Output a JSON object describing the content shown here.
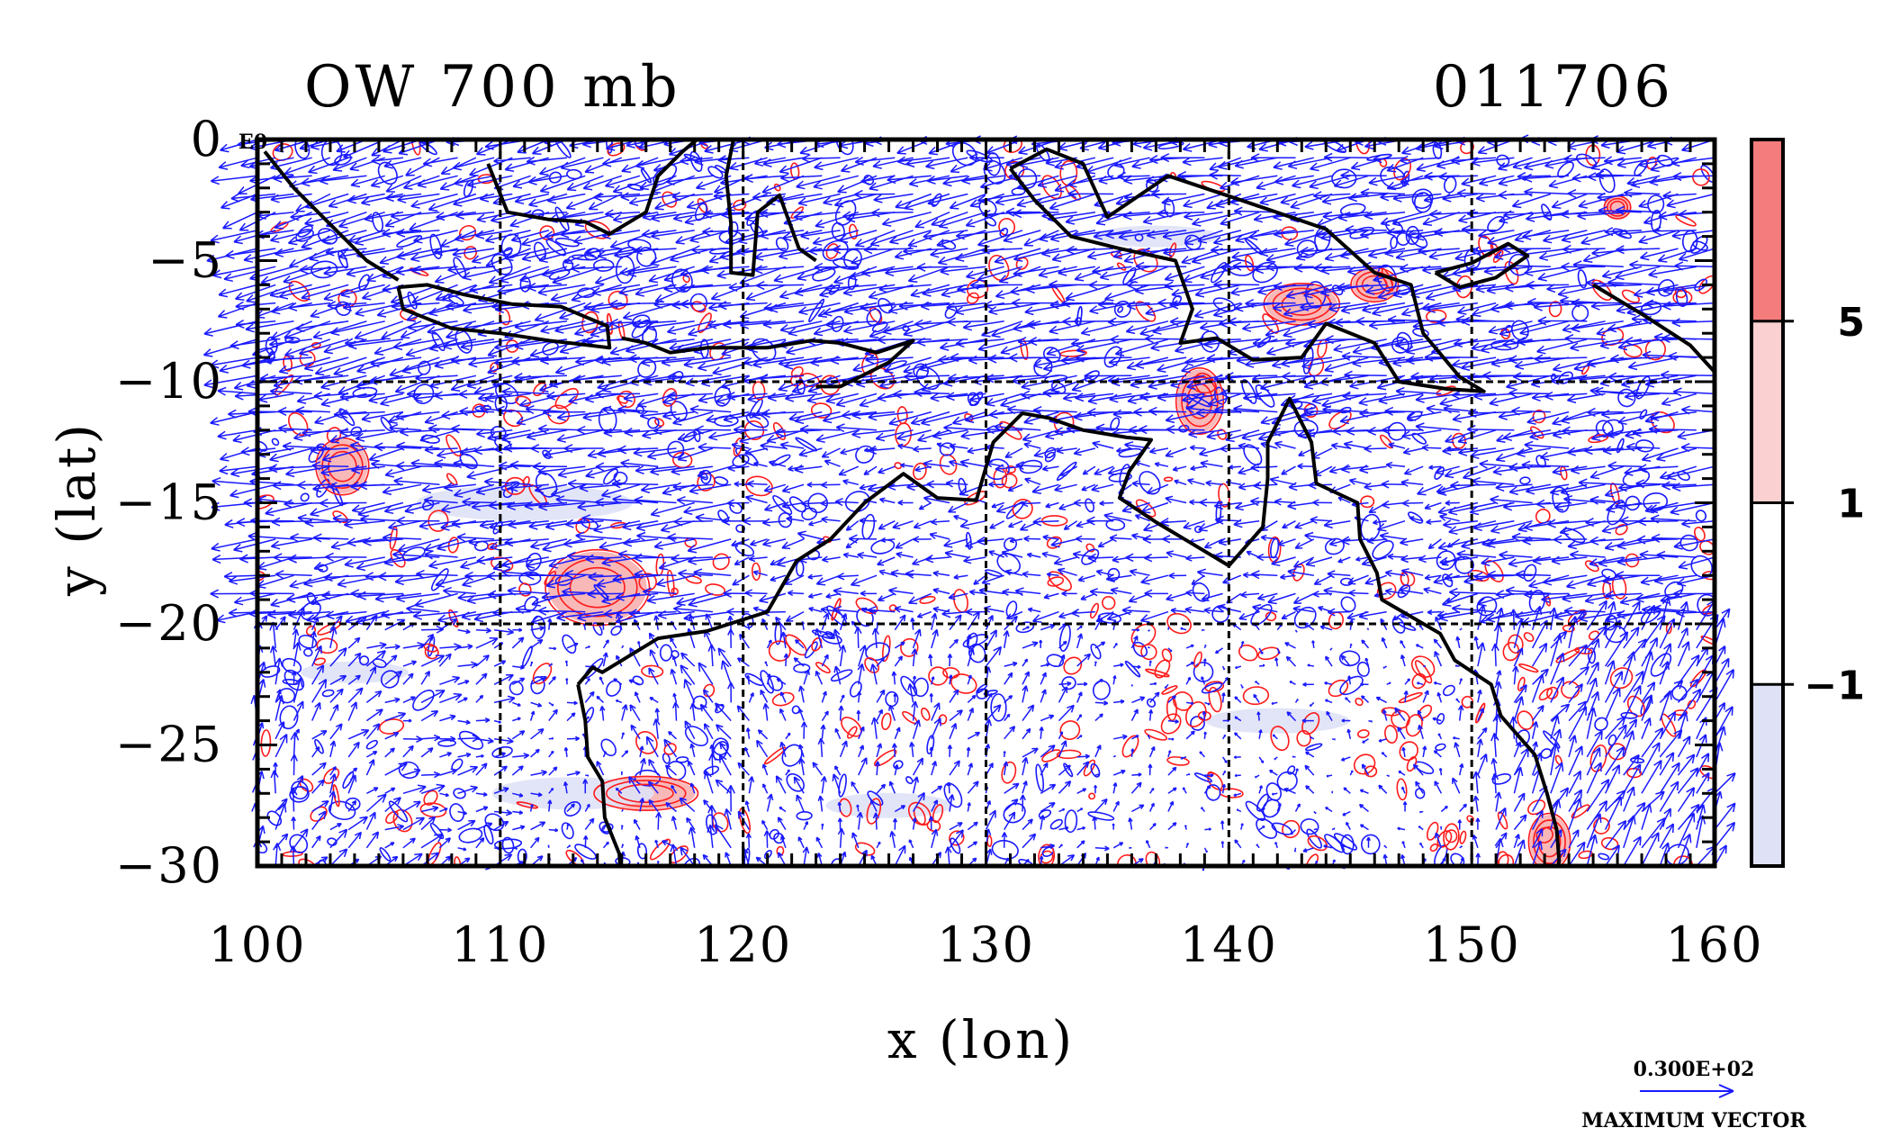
{
  "chart_data": {
    "type": "contour",
    "title": "OW 700 mb",
    "date_label": "011706",
    "xlabel": "x (lon)",
    "ylabel": "y (lat)",
    "xlim": [
      100,
      160
    ],
    "ylim": [
      -30,
      0
    ],
    "x_ticks": [
      "100",
      "110",
      "120",
      "130",
      "140",
      "150",
      "160"
    ],
    "y_ticks": [
      "0",
      "−5",
      "−10",
      "−15",
      "−20",
      "−25",
      "−30"
    ],
    "x_tick_values": [
      100,
      110,
      120,
      130,
      140,
      150,
      160
    ],
    "y_tick_values": [
      0,
      -5,
      -10,
      -15,
      -20,
      -25,
      -30
    ],
    "grid_lon": [
      110,
      120,
      130,
      140,
      150
    ],
    "grid_lat": [
      -10,
      -20
    ],
    "corner_label": "E0",
    "colorbar": {
      "labels": [
        "5",
        "1",
        "−1"
      ],
      "bands": [
        {
          "color": "#f47c7c",
          "range": "> 5"
        },
        {
          "color": "#fbd0d0",
          "range": "1 to 5"
        },
        {
          "color": "#ffffff",
          "range": "-1 to 1"
        },
        {
          "color": "#dfe2f7",
          "range": "< -1"
        }
      ]
    },
    "vector_key": {
      "value": "0.300E+02",
      "caption": "MAXIMUM VECTOR"
    },
    "colors": {
      "vectors": "#1a1aff",
      "positive_contour": "#ff1a1a",
      "negative_contour": "#1a1aff",
      "coastline": "#000000"
    }
  }
}
